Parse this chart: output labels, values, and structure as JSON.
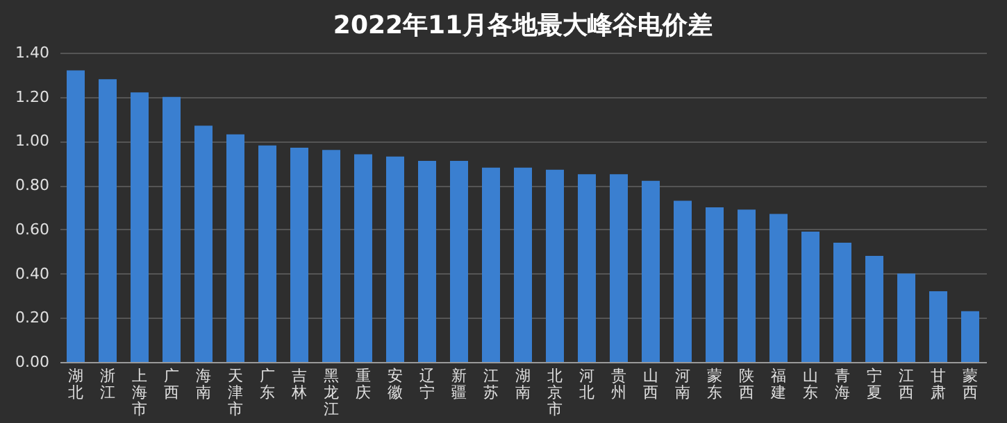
{
  "chart_data": {
    "type": "bar",
    "title": "2022年11月各地最大峰谷电价差",
    "categories": [
      "湖北",
      "浙江",
      "上海市",
      "广西",
      "海南",
      "天津市",
      "广东",
      "吉林",
      "黑龙江",
      "重庆",
      "安徽",
      "辽宁",
      "新疆",
      "江苏",
      "湖南",
      "北京市",
      "河北",
      "贵州",
      "山西",
      "河南",
      "蒙东",
      "陕西",
      "福建",
      "山东",
      "青海",
      "宁夏",
      "江西",
      "甘肃",
      "蒙西"
    ],
    "values": [
      1.32,
      1.28,
      1.22,
      1.2,
      1.07,
      1.03,
      0.98,
      0.97,
      0.96,
      0.94,
      0.93,
      0.91,
      0.91,
      0.88,
      0.88,
      0.87,
      0.85,
      0.85,
      0.82,
      0.73,
      0.7,
      0.69,
      0.67,
      0.59,
      0.54,
      0.48,
      0.4,
      0.32,
      0.23
    ],
    "color": "#3a7fd0",
    "ylim": [
      0,
      1.4
    ],
    "yticks": [
      {
        "value": 0,
        "label": "0.00"
      },
      {
        "value": 0.2,
        "label": "0.20"
      },
      {
        "value": 0.4,
        "label": "0.40"
      },
      {
        "value": 0.6,
        "label": "0.60"
      },
      {
        "value": 0.8,
        "label": "0.80"
      },
      {
        "value": 1.0,
        "label": "1.00"
      },
      {
        "value": 1.2,
        "label": "1.20"
      },
      {
        "value": 1.4,
        "label": "1.40"
      }
    ],
    "grid": "y"
  }
}
